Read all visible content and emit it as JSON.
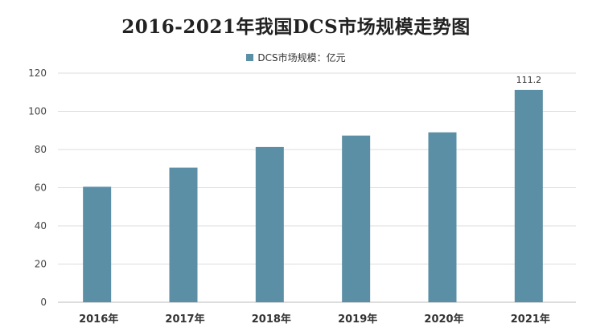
{
  "chart_data": {
    "type": "bar",
    "title": "2016-2021年我国DCS市场规模走势图",
    "categories": [
      "2016年",
      "2017年",
      "2018年",
      "2019年",
      "2020年",
      "2021年"
    ],
    "series": [
      {
        "name": "DCS市场规模：亿元",
        "values": [
          60.5,
          70.5,
          81.3,
          87.3,
          89.0,
          111.2
        ],
        "data_labels": [
          null,
          null,
          null,
          null,
          null,
          "111.2"
        ]
      }
    ],
    "ylim": [
      0,
      120
    ],
    "yticks": [
      0,
      20,
      40,
      60,
      80,
      100,
      120
    ],
    "grid": true,
    "legend_position": "top-center",
    "bar_color": "#5b8fa6",
    "grid_color": "#dddddd"
  }
}
